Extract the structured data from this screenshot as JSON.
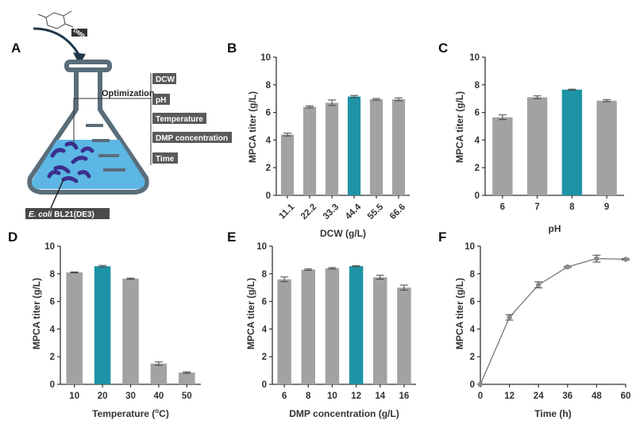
{
  "panelA": {
    "letter": "A",
    "chem_label": "DMP",
    "optimization_label": "Optimization",
    "factors": [
      "DCW",
      "pH",
      "Temperature",
      "DMP concentration",
      "Time"
    ],
    "strain_italic": "E. coli",
    "strain_rest": " BL21(DE3)"
  },
  "colors": {
    "bar": "#a2a2a4",
    "highlight": "#1f93a6",
    "axis": "#333333",
    "flask_liquid": "#5cb7e4",
    "flask_line": "#5a6d7a",
    "cell": "#3b2f8f"
  },
  "chart_data": [
    {
      "id": "B",
      "letter": "B",
      "type": "bar",
      "categories": [
        "11.1",
        "22.2",
        "33.3",
        "44.4",
        "55.5",
        "66.6"
      ],
      "values": [
        4.4,
        6.4,
        6.7,
        7.15,
        6.95,
        6.95
      ],
      "errors": [
        0.1,
        0.07,
        0.2,
        0.08,
        0.06,
        0.1
      ],
      "highlight_index": 3,
      "ylabel": "MPCA titer (g/L)",
      "xlabel": "DCW (g/L)",
      "ylim": [
        0,
        10
      ],
      "yticks": [
        "0",
        "2",
        "4",
        "6",
        "8",
        "10"
      ],
      "tick_rotation": -45
    },
    {
      "id": "C",
      "letter": "C",
      "type": "bar",
      "categories": [
        "6",
        "7",
        "8",
        "9"
      ],
      "values": [
        5.65,
        7.1,
        7.65,
        6.85
      ],
      "errors": [
        0.17,
        0.1,
        0.04,
        0.07
      ],
      "highlight_index": 2,
      "ylabel": "MPCA titer (g/L)",
      "xlabel": "pH",
      "ylim": [
        0,
        10
      ],
      "yticks": [
        "0",
        "2",
        "4",
        "6",
        "8",
        "10"
      ],
      "tick_rotation": 0
    },
    {
      "id": "D",
      "letter": "D",
      "type": "bar",
      "categories": [
        "10",
        "20",
        "30",
        "40",
        "50"
      ],
      "values": [
        8.1,
        8.55,
        7.65,
        1.5,
        0.85
      ],
      "errors": [
        0.03,
        0.06,
        0.04,
        0.12,
        0.05
      ],
      "highlight_index": 1,
      "ylabel": "MPCA titer (g/L)",
      "xlabel": "Temperature (",
      "xlabel_sup": "o",
      "xlabel_end": "C)",
      "ylim": [
        0,
        10
      ],
      "yticks": [
        "0",
        "2",
        "4",
        "6",
        "8",
        "10"
      ],
      "tick_rotation": 0
    },
    {
      "id": "E",
      "letter": "E",
      "type": "bar",
      "categories": [
        "6",
        "8",
        "10",
        "12",
        "14",
        "16"
      ],
      "values": [
        7.6,
        8.3,
        8.4,
        8.55,
        7.75,
        7.0
      ],
      "errors": [
        0.17,
        0.05,
        0.05,
        0.03,
        0.14,
        0.18
      ],
      "highlight_index": 3,
      "ylabel": "MPCA titer (g/L)",
      "xlabel": "DMP concentration (g/L)",
      "ylim": [
        0,
        10
      ],
      "yticks": [
        "0",
        "2",
        "4",
        "6",
        "8",
        "10"
      ],
      "tick_rotation": 0
    },
    {
      "id": "F",
      "letter": "F",
      "type": "line",
      "x": [
        0,
        12,
        24,
        36,
        48,
        60
      ],
      "values": [
        0,
        4.85,
        7.2,
        8.5,
        9.1,
        9.05
      ],
      "errors": [
        0,
        0.2,
        0.22,
        0.05,
        0.25,
        0.05
      ],
      "ylabel": "MPCA titer (g/L)",
      "xlabel": "Time (h)",
      "xlim": [
        0,
        60
      ],
      "ylim": [
        0,
        10
      ],
      "xticks": [
        "0",
        "12",
        "24",
        "36",
        "48",
        "60"
      ],
      "yticks": [
        "0",
        "2",
        "4",
        "6",
        "8",
        "10"
      ]
    }
  ]
}
